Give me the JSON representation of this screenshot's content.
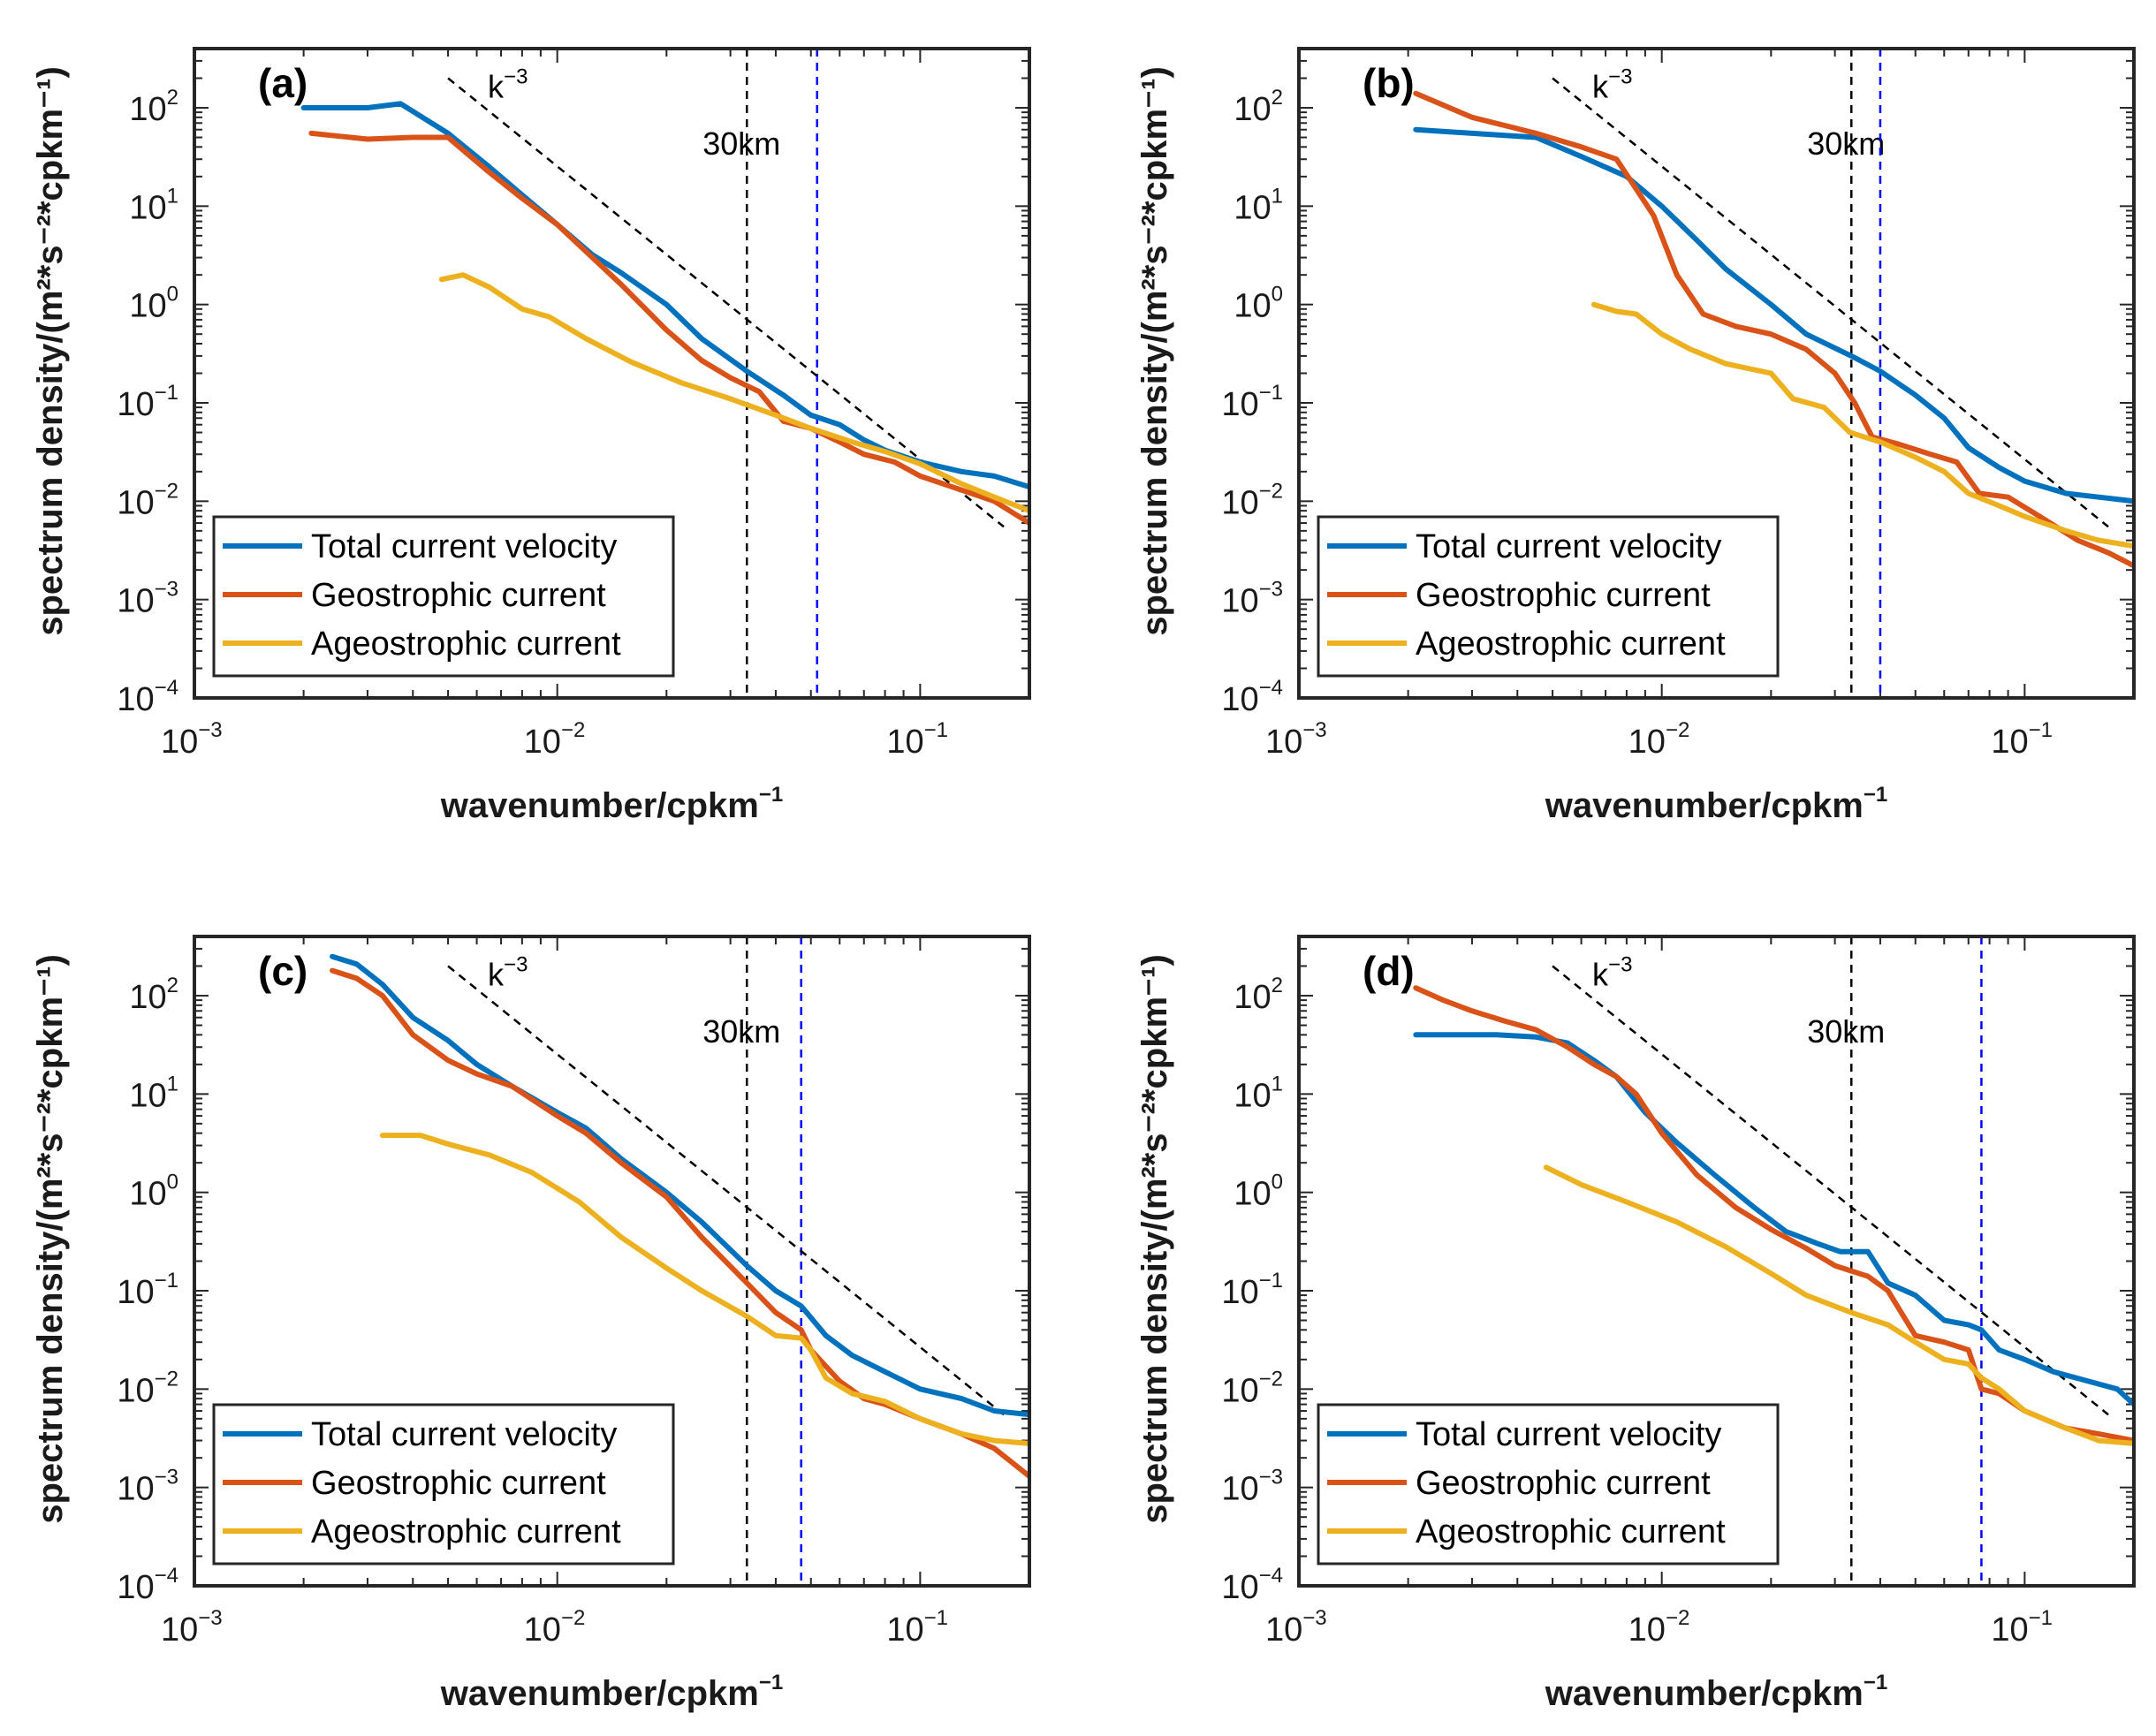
{
  "colors": {
    "total": "#0072BD",
    "geo": "#D95319",
    "ageo": "#EDB120",
    "ref_line": "#000000",
    "cutoff_line": "#0000FF",
    "axis": "#262626"
  },
  "chart_data": [
    {
      "type": "line",
      "panel": "(a)",
      "xscale": "log",
      "yscale": "log",
      "xlim": [
        0.001,
        0.2
      ],
      "ylim": [
        0.0001,
        400
      ],
      "xlabel_base": "wavenumber/cpkm",
      "xlabel_exp": "−1",
      "ylabel": "spectrum density/(m²*s⁻²*cpkm⁻¹)",
      "xticks": [
        {
          "base": "10",
          "exp": "−3",
          "value": 0.001
        },
        {
          "base": "10",
          "exp": "−2",
          "value": 0.01
        },
        {
          "base": "10",
          "exp": "−1",
          "value": 0.1
        }
      ],
      "yticks": [
        {
          "base": "10",
          "exp": "−4",
          "value": 0.0001
        },
        {
          "base": "10",
          "exp": "−3",
          "value": 0.001
        },
        {
          "base": "10",
          "exp": "−2",
          "value": 0.01
        },
        {
          "base": "10",
          "exp": "−1",
          "value": 0.1
        },
        {
          "base": "10",
          "exp": "0",
          "value": 1
        },
        {
          "base": "10",
          "exp": "1",
          "value": 10
        },
        {
          "base": "10",
          "exp": "2",
          "value": 100
        }
      ],
      "reference": {
        "label_base": "k",
        "label_exp": "−3",
        "x": [
          0.005,
          0.17
        ],
        "y": [
          200,
          0.0055
        ]
      },
      "vlines": [
        {
          "x": 0.0333,
          "label": "30km",
          "color": "black"
        },
        {
          "x": 0.052,
          "color": "blue"
        }
      ],
      "legend": {
        "position": "bottom-left",
        "entries": [
          "Total current velocity",
          "Geostrophic current",
          "Ageostrophic current"
        ]
      },
      "series": [
        {
          "name": "Total current velocity",
          "key": "total",
          "x": [
            0.002,
            0.003,
            0.0037,
            0.005,
            0.0065,
            0.008,
            0.01,
            0.0125,
            0.015,
            0.02,
            0.025,
            0.0333,
            0.042,
            0.05,
            0.06,
            0.07,
            0.08,
            0.1,
            0.13,
            0.16,
            0.2
          ],
          "y": [
            100,
            100,
            110,
            55,
            25,
            13,
            6.5,
            3.2,
            2.1,
            1.0,
            0.45,
            0.21,
            0.12,
            0.075,
            0.06,
            0.042,
            0.033,
            0.025,
            0.02,
            0.018,
            0.014
          ]
        },
        {
          "name": "Geostrophic current",
          "key": "geo",
          "x": [
            0.0021,
            0.003,
            0.004,
            0.005,
            0.0065,
            0.008,
            0.01,
            0.0125,
            0.015,
            0.02,
            0.025,
            0.03,
            0.036,
            0.042,
            0.05,
            0.06,
            0.07,
            0.085,
            0.1,
            0.13,
            0.16,
            0.2
          ],
          "y": [
            55,
            48,
            50,
            50,
            22,
            12,
            6.5,
            3.0,
            1.6,
            0.55,
            0.27,
            0.18,
            0.13,
            0.065,
            0.055,
            0.04,
            0.03,
            0.025,
            0.018,
            0.013,
            0.01,
            0.006
          ]
        },
        {
          "name": "Ageostrophic current",
          "key": "ageo",
          "x": [
            0.0048,
            0.0055,
            0.0065,
            0.008,
            0.0095,
            0.012,
            0.016,
            0.022,
            0.03,
            0.04,
            0.05,
            0.065,
            0.08,
            0.1,
            0.13,
            0.16,
            0.2
          ],
          "y": [
            1.8,
            2.0,
            1.5,
            0.9,
            0.75,
            0.45,
            0.26,
            0.16,
            0.11,
            0.075,
            0.055,
            0.04,
            0.032,
            0.024,
            0.015,
            0.011,
            0.008
          ]
        }
      ]
    },
    {
      "type": "line",
      "panel": "(b)",
      "xscale": "log",
      "yscale": "log",
      "xlim": [
        0.001,
        0.2
      ],
      "ylim": [
        0.0001,
        400
      ],
      "xlabel_base": "wavenumber/cpkm",
      "xlabel_exp": "−1",
      "ylabel": "spectrum density/(m²*s⁻²*cpkm⁻¹)",
      "xticks": [
        {
          "base": "10",
          "exp": "−3",
          "value": 0.001
        },
        {
          "base": "10",
          "exp": "−2",
          "value": 0.01
        },
        {
          "base": "10",
          "exp": "−1",
          "value": 0.1
        }
      ],
      "yticks": [
        {
          "base": "10",
          "exp": "−4",
          "value": 0.0001
        },
        {
          "base": "10",
          "exp": "−3",
          "value": 0.001
        },
        {
          "base": "10",
          "exp": "−2",
          "value": 0.01
        },
        {
          "base": "10",
          "exp": "−1",
          "value": 0.1
        },
        {
          "base": "10",
          "exp": "0",
          "value": 1
        },
        {
          "base": "10",
          "exp": "1",
          "value": 10
        },
        {
          "base": "10",
          "exp": "2",
          "value": 100
        }
      ],
      "reference": {
        "label_base": "k",
        "label_exp": "−3",
        "x": [
          0.005,
          0.17
        ],
        "y": [
          200,
          0.0055
        ]
      },
      "vlines": [
        {
          "x": 0.0333,
          "label": "30km",
          "color": "black"
        },
        {
          "x": 0.04,
          "color": "blue"
        }
      ],
      "legend": {
        "position": "bottom-left",
        "entries": [
          "Total current velocity",
          "Geostrophic current",
          "Ageostrophic current"
        ]
      },
      "series": [
        {
          "name": "Total current velocity",
          "key": "total",
          "x": [
            0.0021,
            0.003,
            0.0045,
            0.006,
            0.008,
            0.01,
            0.0125,
            0.015,
            0.02,
            0.025,
            0.0333,
            0.04,
            0.05,
            0.06,
            0.07,
            0.085,
            0.1,
            0.13,
            0.16,
            0.2
          ],
          "y": [
            60,
            55,
            50,
            32,
            20,
            10,
            4.5,
            2.3,
            1.0,
            0.5,
            0.3,
            0.21,
            0.12,
            0.07,
            0.035,
            0.022,
            0.016,
            0.012,
            0.011,
            0.01
          ]
        },
        {
          "name": "Geostrophic current",
          "key": "geo",
          "x": [
            0.0021,
            0.003,
            0.0045,
            0.006,
            0.0075,
            0.0085,
            0.0095,
            0.011,
            0.013,
            0.016,
            0.02,
            0.025,
            0.03,
            0.034,
            0.038,
            0.045,
            0.055,
            0.065,
            0.075,
            0.09,
            0.11,
            0.14,
            0.17,
            0.2
          ],
          "y": [
            140,
            80,
            55,
            40,
            30,
            15,
            8,
            2.0,
            0.8,
            0.6,
            0.5,
            0.35,
            0.2,
            0.1,
            0.045,
            0.038,
            0.03,
            0.025,
            0.012,
            0.011,
            0.007,
            0.004,
            0.003,
            0.0022
          ]
        },
        {
          "name": "Ageostrophic current",
          "key": "ageo",
          "x": [
            0.0065,
            0.0075,
            0.0085,
            0.01,
            0.012,
            0.015,
            0.02,
            0.023,
            0.028,
            0.033,
            0.04,
            0.05,
            0.06,
            0.07,
            0.085,
            0.1,
            0.13,
            0.16,
            0.2
          ],
          "y": [
            1.0,
            0.85,
            0.8,
            0.5,
            0.35,
            0.25,
            0.2,
            0.11,
            0.09,
            0.05,
            0.04,
            0.028,
            0.02,
            0.012,
            0.009,
            0.007,
            0.005,
            0.004,
            0.0035
          ]
        }
      ]
    },
    {
      "type": "line",
      "panel": "(c)",
      "xscale": "log",
      "yscale": "log",
      "xlim": [
        0.001,
        0.2
      ],
      "ylim": [
        0.0001,
        400
      ],
      "xlabel_base": "wavenumber/cpkm",
      "xlabel_exp": "−1",
      "ylabel": "spectrum density/(m²*s⁻²*cpkm⁻¹)",
      "xticks": [
        {
          "base": "10",
          "exp": "−3",
          "value": 0.001
        },
        {
          "base": "10",
          "exp": "−2",
          "value": 0.01
        },
        {
          "base": "10",
          "exp": "−1",
          "value": 0.1
        }
      ],
      "yticks": [
        {
          "base": "10",
          "exp": "−4",
          "value": 0.0001
        },
        {
          "base": "10",
          "exp": "−3",
          "value": 0.001
        },
        {
          "base": "10",
          "exp": "−2",
          "value": 0.01
        },
        {
          "base": "10",
          "exp": "−1",
          "value": 0.1
        },
        {
          "base": "10",
          "exp": "0",
          "value": 1
        },
        {
          "base": "10",
          "exp": "1",
          "value": 10
        },
        {
          "base": "10",
          "exp": "2",
          "value": 100
        }
      ],
      "reference": {
        "label_base": "k",
        "label_exp": "−3",
        "x": [
          0.005,
          0.17
        ],
        "y": [
          200,
          0.0055
        ]
      },
      "vlines": [
        {
          "x": 0.0333,
          "label": "30km",
          "color": "black"
        },
        {
          "x": 0.047,
          "color": "blue"
        }
      ],
      "legend": {
        "position": "bottom-left",
        "entries": [
          "Total current velocity",
          "Geostrophic current",
          "Ageostrophic current"
        ]
      },
      "series": [
        {
          "name": "Total current velocity",
          "key": "total",
          "x": [
            0.0024,
            0.0028,
            0.0033,
            0.004,
            0.005,
            0.006,
            0.0075,
            0.01,
            0.012,
            0.015,
            0.02,
            0.025,
            0.0333,
            0.04,
            0.047,
            0.055,
            0.065,
            0.08,
            0.1,
            0.13,
            0.16,
            0.2
          ],
          "y": [
            250,
            210,
            130,
            60,
            35,
            20,
            12,
            6.5,
            4.5,
            2.2,
            1.0,
            0.5,
            0.18,
            0.1,
            0.07,
            0.035,
            0.022,
            0.015,
            0.01,
            0.008,
            0.006,
            0.0055
          ]
        },
        {
          "name": "Geostrophic current",
          "key": "geo",
          "x": [
            0.0024,
            0.0028,
            0.0033,
            0.004,
            0.005,
            0.006,
            0.0075,
            0.01,
            0.012,
            0.015,
            0.02,
            0.025,
            0.0333,
            0.04,
            0.047,
            0.05,
            0.06,
            0.07,
            0.08,
            0.1,
            0.13,
            0.16,
            0.2
          ],
          "y": [
            180,
            150,
            100,
            40,
            22,
            16,
            12,
            6.0,
            4.0,
            2.0,
            0.9,
            0.35,
            0.12,
            0.06,
            0.04,
            0.025,
            0.012,
            0.008,
            0.007,
            0.005,
            0.0035,
            0.0025,
            0.0013
          ]
        },
        {
          "name": "Ageostrophic current",
          "key": "ageo",
          "x": [
            0.0033,
            0.0042,
            0.005,
            0.0065,
            0.0085,
            0.0115,
            0.015,
            0.02,
            0.025,
            0.0333,
            0.04,
            0.047,
            0.05,
            0.055,
            0.065,
            0.08,
            0.1,
            0.13,
            0.16,
            0.2
          ],
          "y": [
            3.8,
            3.8,
            3.1,
            2.4,
            1.6,
            0.8,
            0.35,
            0.17,
            0.1,
            0.055,
            0.035,
            0.033,
            0.025,
            0.013,
            0.009,
            0.0075,
            0.005,
            0.0035,
            0.003,
            0.0028
          ]
        }
      ]
    },
    {
      "type": "line",
      "panel": "(d)",
      "xscale": "log",
      "yscale": "log",
      "xlim": [
        0.001,
        0.2
      ],
      "ylim": [
        0.0001,
        400
      ],
      "xlabel_base": "wavenumber/cpkm",
      "xlabel_exp": "−1",
      "ylabel": "spectrum density/(m²*s⁻²*cpkm⁻¹)",
      "xticks": [
        {
          "base": "10",
          "exp": "−3",
          "value": 0.001
        },
        {
          "base": "10",
          "exp": "−2",
          "value": 0.01
        },
        {
          "base": "10",
          "exp": "−1",
          "value": 0.1
        }
      ],
      "yticks": [
        {
          "base": "10",
          "exp": "−4",
          "value": 0.0001
        },
        {
          "base": "10",
          "exp": "−3",
          "value": 0.001
        },
        {
          "base": "10",
          "exp": "−2",
          "value": 0.01
        },
        {
          "base": "10",
          "exp": "−1",
          "value": 0.1
        },
        {
          "base": "10",
          "exp": "0",
          "value": 1
        },
        {
          "base": "10",
          "exp": "1",
          "value": 10
        },
        {
          "base": "10",
          "exp": "2",
          "value": 100
        }
      ],
      "reference": {
        "label_base": "k",
        "label_exp": "−3",
        "x": [
          0.005,
          0.17
        ],
        "y": [
          200,
          0.0055
        ]
      },
      "vlines": [
        {
          "x": 0.0333,
          "label": "30km",
          "color": "black"
        },
        {
          "x": 0.076,
          "color": "blue"
        }
      ],
      "legend": {
        "position": "bottom-left",
        "entries": [
          "Total current velocity",
          "Geostrophic current",
          "Ageostrophic current"
        ]
      },
      "series": [
        {
          "name": "Total current velocity",
          "key": "total",
          "x": [
            0.0021,
            0.0035,
            0.0045,
            0.0055,
            0.0065,
            0.0075,
            0.009,
            0.011,
            0.014,
            0.018,
            0.022,
            0.027,
            0.031,
            0.037,
            0.042,
            0.05,
            0.06,
            0.07,
            0.076,
            0.085,
            0.1,
            0.12,
            0.15,
            0.18,
            0.2
          ],
          "y": [
            40,
            40,
            38,
            33,
            22,
            15,
            6.5,
            3.2,
            1.5,
            0.7,
            0.4,
            0.3,
            0.25,
            0.25,
            0.12,
            0.09,
            0.05,
            0.045,
            0.04,
            0.025,
            0.02,
            0.015,
            0.012,
            0.01,
            0.007
          ]
        },
        {
          "name": "Geostrophic current",
          "key": "geo",
          "x": [
            0.0021,
            0.0025,
            0.003,
            0.0037,
            0.0045,
            0.0055,
            0.0065,
            0.0075,
            0.0085,
            0.01,
            0.0125,
            0.016,
            0.02,
            0.025,
            0.03,
            0.037,
            0.042,
            0.05,
            0.06,
            0.07,
            0.076,
            0.085,
            0.1,
            0.13,
            0.16,
            0.2
          ],
          "y": [
            120,
            90,
            70,
            55,
            45,
            30,
            20,
            15,
            10,
            4.0,
            1.5,
            0.7,
            0.42,
            0.27,
            0.18,
            0.14,
            0.1,
            0.035,
            0.03,
            0.025,
            0.01,
            0.009,
            0.006,
            0.004,
            0.0035,
            0.003
          ]
        },
        {
          "name": "Ageostrophic current",
          "key": "ageo",
          "x": [
            0.0048,
            0.006,
            0.008,
            0.011,
            0.015,
            0.02,
            0.025,
            0.0333,
            0.042,
            0.05,
            0.06,
            0.07,
            0.076,
            0.085,
            0.1,
            0.13,
            0.16,
            0.2
          ],
          "y": [
            1.8,
            1.2,
            0.8,
            0.5,
            0.28,
            0.15,
            0.09,
            0.06,
            0.045,
            0.03,
            0.02,
            0.018,
            0.013,
            0.01,
            0.006,
            0.004,
            0.003,
            0.0028
          ]
        }
      ]
    }
  ]
}
